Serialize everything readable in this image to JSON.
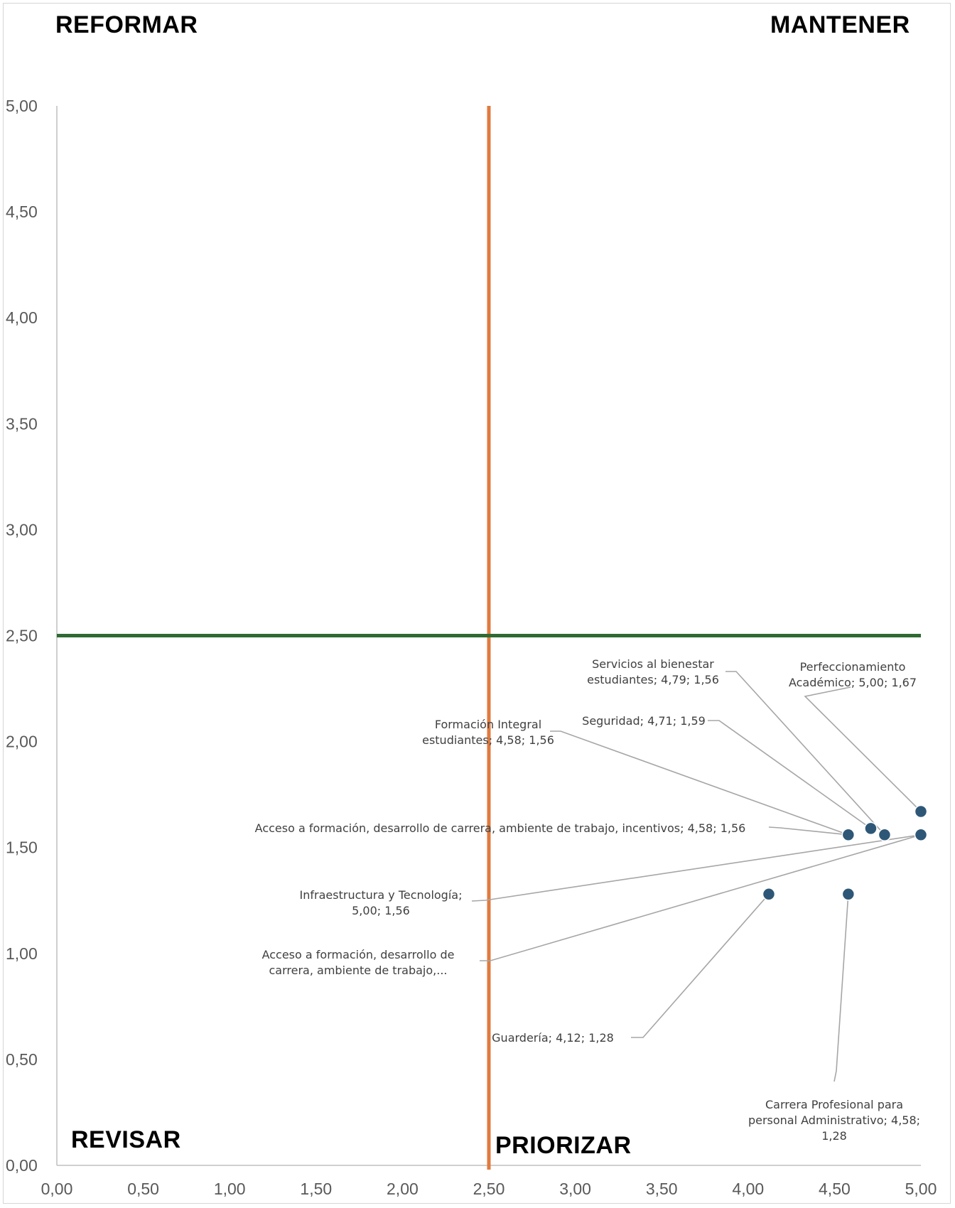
{
  "colors": {
    "point": "#2e5777",
    "point_stroke": "#ffffff",
    "vertical_line": "#e07a3e",
    "horizontal_line": "#2f6a32",
    "axis": "#bfbfbf",
    "leader": "#a6a6a6",
    "text": "#404040"
  },
  "quadrants": {
    "top_left": "REFORMAR",
    "top_right": "MANTENER",
    "bottom_left": "REVISAR",
    "bottom_right": "PRIORIZAR"
  },
  "chart_data": {
    "type": "scatter",
    "title": "",
    "xlabel": "",
    "ylabel": "",
    "xlim": [
      0,
      5
    ],
    "ylim": [
      0,
      5
    ],
    "x_ticks": [
      "0,00",
      "0,50",
      "1,00",
      "1,50",
      "2,00",
      "2,50",
      "3,00",
      "3,50",
      "4,00",
      "4,50",
      "5,00"
    ],
    "y_ticks": [
      "0,00",
      "0,50",
      "1,00",
      "1,50",
      "2,00",
      "2,50",
      "3,00",
      "3,50",
      "4,00",
      "4,50",
      "5,00"
    ],
    "reference_lines": {
      "x": 2.5,
      "y": 2.5
    },
    "points": [
      {
        "name": "Perfeccionamiento Académico",
        "x": 5.0,
        "y": 1.67,
        "label_lines": [
          "Perfeccionamiento",
          "Académico; 5,00; 1,67"
        ]
      },
      {
        "name": "Servicios al bienestar estudiantes",
        "x": 4.79,
        "y": 1.56,
        "label_lines": [
          "Servicios al bienestar",
          "estudiantes; 4,79; 1,56"
        ]
      },
      {
        "name": "Seguridad",
        "x": 4.71,
        "y": 1.59,
        "label_lines": [
          "Seguridad; 4,71; 1,59"
        ]
      },
      {
        "name": "Formación Integral estudiantes",
        "x": 4.58,
        "y": 1.56,
        "label_lines": [
          "Formación Integral",
          "estudiantes; 4,58; 1,56"
        ]
      },
      {
        "name": "Acceso a formación, desarrollo de carrera, ambiente de trabajo, incentivos",
        "x": 4.58,
        "y": 1.56,
        "label_lines": [
          "Acceso a formación, desarrollo de carrera, ambiente de trabajo, incentivos; 4,58; 1,56"
        ]
      },
      {
        "name": "Infraestructura y Tecnología",
        "x": 5.0,
        "y": 1.56,
        "label_lines": [
          "Infraestructura y Tecnología;",
          "5,00; 1,56"
        ]
      },
      {
        "name": "Acceso a formación, desarrollo de carrera, ambiente de trabajo,...",
        "x": 5.0,
        "y": 1.56,
        "label_lines": [
          "Acceso a formación, desarrollo de",
          "carrera, ambiente de trabajo,..."
        ]
      },
      {
        "name": "Guardería",
        "x": 4.12,
        "y": 1.28,
        "label_lines": [
          "Guardería; 4,12; 1,28"
        ]
      },
      {
        "name": "Carrera Profesional para personal Administrativo",
        "x": 4.58,
        "y": 1.28,
        "label_lines": [
          "Carrera Profesional para",
          "personal Administrativo; 4,58;",
          "1,28"
        ]
      }
    ]
  }
}
